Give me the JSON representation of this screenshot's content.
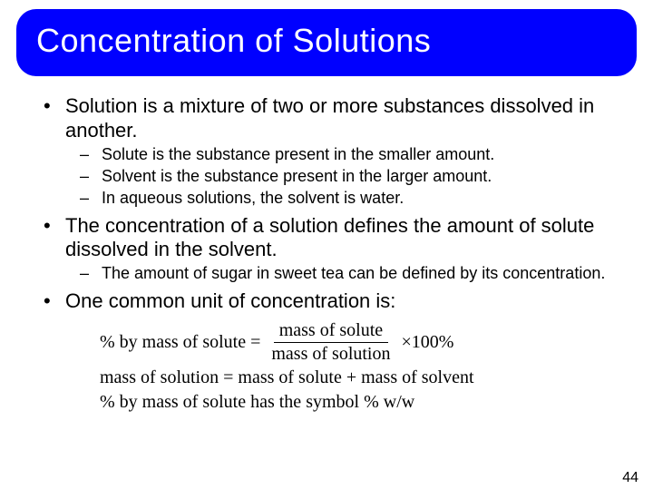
{
  "title": "Concentration of Solutions",
  "bullets": {
    "b1": "Solution is a mixture of two or more substances dissolved in another.",
    "b1_sub": {
      "s1": "Solute is the substance present in the smaller amount.",
      "s2": "Solvent is the substance present in the larger amount.",
      "s3": "In aqueous solutions, the solvent is water."
    },
    "b2": "The concentration of a solution defines the amount of solute dissolved in the solvent.",
    "b2_sub": {
      "s1": "The amount of sugar in sweet tea can be defined by its concentration."
    },
    "b3": "One common unit of concentration is:"
  },
  "formula": {
    "line1_left": "% by mass of solute =",
    "line1_num": "mass of solute",
    "line1_den": "mass of solution",
    "line1_right": "×100%",
    "line2": "mass of solution = mass of solute + mass of solvent",
    "line3": "% by mass of solute has the symbol % w/w"
  },
  "page_number": "44",
  "colors": {
    "title_bg": "#0000ff",
    "title_fg": "#ffffff",
    "text": "#000000",
    "page_bg": "#ffffff"
  }
}
